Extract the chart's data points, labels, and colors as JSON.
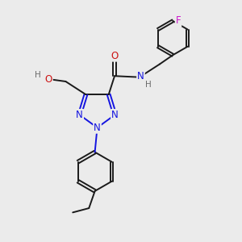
{
  "background_color": "#ebebeb",
  "bond_color": "#1a1a1a",
  "n_color": "#1414e0",
  "o_color": "#cc1414",
  "f_color": "#cc14cc",
  "h_color": "#6a6a6a",
  "figsize": [
    3.0,
    3.0
  ],
  "dpi": 100,
  "xlim": [
    0,
    10
  ],
  "ylim": [
    0,
    10
  ]
}
